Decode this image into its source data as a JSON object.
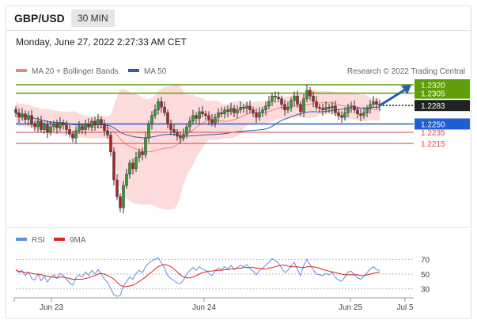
{
  "header": {
    "pair": "GBP/USD",
    "timeframe": "30 MIN"
  },
  "date_line": "Monday, June 27, 2022 2:27:33 AM CET",
  "legend": {
    "bb_label": "MA 20 + Bollinger Bands",
    "ma50_label": "MA 50",
    "credit": "Research © 2022 Trading Central",
    "rsi_label": "RSI",
    "ma9_label": "9MA"
  },
  "colors": {
    "bb_fill": "#fbd5d5",
    "bb_line": "#f08080",
    "ma50": "#2d5fa8",
    "resistance": "#5fa00a",
    "current": "#222222",
    "pivot": "#1f5fd6",
    "support": "#e34444",
    "candle": "#333333",
    "arrow": "#2d5fa8",
    "rsi": "#5f8fe0",
    "ma9": "#e02222"
  },
  "chart_data": [
    {
      "type": "candlestick",
      "title": "GBP/USD 30 MIN",
      "x_ticks": [
        "Jun 23",
        "Jun 24",
        "Jun 25",
        "Jul 5"
      ],
      "ylim": [
        1.2075,
        1.233
      ],
      "levels": [
        {
          "value": "1.2320",
          "role": "resistance"
        },
        {
          "value": "1.2305",
          "role": "resistance"
        },
        {
          "value": "1.2283",
          "role": "current"
        },
        {
          "value": "1.2250",
          "role": "pivot"
        },
        {
          "value": "1.2235",
          "role": "support"
        },
        {
          "value": "1.2215",
          "role": "support"
        }
      ],
      "series": [
        {
          "name": "MA 20 + Bollinger Bands",
          "kind": "band"
        },
        {
          "name": "MA 50",
          "kind": "line"
        }
      ],
      "close": [
        1.227,
        1.2262,
        1.2268,
        1.2258,
        1.2265,
        1.225,
        1.2245,
        1.2255,
        1.224,
        1.2248,
        1.2235,
        1.2245,
        1.225,
        1.2243,
        1.2252,
        1.2248,
        1.224,
        1.2232,
        1.2225,
        1.2238,
        1.2245,
        1.224,
        1.225,
        1.2245,
        1.2255,
        1.2248,
        1.2258,
        1.225,
        1.2238,
        1.223,
        1.22,
        1.215,
        1.212,
        1.21,
        1.214,
        1.216,
        1.218,
        1.217,
        1.219,
        1.22,
        1.2195,
        1.2225,
        1.225,
        1.2265,
        1.2275,
        1.229,
        1.228,
        1.227,
        1.225,
        1.224,
        1.2235,
        1.2228,
        1.2225,
        1.2232,
        1.2245,
        1.2255,
        1.2265,
        1.226,
        1.2272,
        1.2268,
        1.2265,
        1.2258,
        1.2252,
        1.2262,
        1.227,
        1.2268,
        1.2275,
        1.2272,
        1.2278,
        1.227,
        1.2275,
        1.228,
        1.2278,
        1.2282,
        1.2275,
        1.227,
        1.2262,
        1.227,
        1.2275,
        1.2282,
        1.229,
        1.23,
        1.2298,
        1.2295,
        1.2285,
        1.2275,
        1.228,
        1.2292,
        1.23,
        1.2285,
        1.2272,
        1.2295,
        1.231,
        1.23,
        1.229,
        1.228,
        1.2278,
        1.2275,
        1.228,
        1.2278,
        1.2282,
        1.227,
        1.2265,
        1.2262,
        1.227,
        1.228,
        1.2282,
        1.2275,
        1.2268,
        1.2265,
        1.227,
        1.2278,
        1.2285,
        1.229,
        1.2285,
        1.2283
      ]
    },
    {
      "type": "line",
      "title": "RSI",
      "y_ticks": [
        "70",
        "50",
        "30"
      ],
      "ylim": [
        20,
        80
      ],
      "series": [
        {
          "name": "RSI",
          "values": [
            56,
            52,
            55,
            48,
            53,
            44,
            42,
            50,
            41,
            47,
            39,
            46,
            49,
            44,
            51,
            48,
            43,
            38,
            35,
            45,
            49,
            46,
            53,
            48,
            55,
            50,
            56,
            50,
            43,
            39,
            30,
            22,
            20,
            21,
            34,
            40,
            46,
            43,
            51,
            55,
            52,
            60,
            65,
            68,
            70,
            72,
            65,
            58,
            48,
            44,
            41,
            38,
            37,
            42,
            50,
            55,
            59,
            55,
            60,
            57,
            55,
            51,
            48,
            54,
            58,
            56,
            60,
            57,
            62,
            56,
            59,
            62,
            60,
            63,
            57,
            54,
            49,
            55,
            58,
            62,
            66,
            71,
            68,
            65,
            58,
            52,
            55,
            61,
            66,
            56,
            48,
            62,
            70,
            63,
            56,
            50,
            49,
            48,
            51,
            49,
            52,
            45,
            42,
            40,
            46,
            53,
            54,
            49,
            45,
            43,
            47,
            52,
            57,
            60,
            56,
            55
          ]
        },
        {
          "name": "9MA",
          "values": [
            55,
            54,
            53,
            52,
            52,
            51,
            50,
            50,
            49,
            48,
            47,
            46,
            46,
            45,
            46,
            46,
            45,
            44,
            43,
            43,
            43,
            43,
            44,
            45,
            47,
            48,
            50,
            51,
            50,
            48,
            46,
            43,
            39,
            35,
            33,
            33,
            34,
            35,
            37,
            40,
            43,
            46,
            50,
            53,
            57,
            60,
            62,
            63,
            62,
            60,
            57,
            53,
            49,
            46,
            45,
            45,
            46,
            48,
            50,
            52,
            53,
            54,
            54,
            55,
            55,
            55,
            56,
            56,
            57,
            57,
            58,
            58,
            59,
            59,
            59,
            59,
            58,
            58,
            57,
            57,
            58,
            59,
            60,
            61,
            62,
            62,
            61,
            60,
            60,
            60,
            59,
            59,
            60,
            60,
            60,
            59,
            58,
            56,
            55,
            54,
            53,
            52,
            51,
            50,
            49,
            49,
            49,
            49,
            49,
            48,
            48,
            49,
            50,
            51,
            52,
            53
          ]
        }
      ]
    }
  ]
}
